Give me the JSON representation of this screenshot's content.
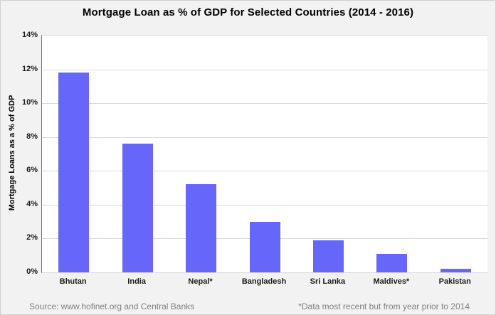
{
  "title": "Mortgage Loan as % of GDP for Selected Countries (2014 - 2016)",
  "footer": {
    "source": "Source: www.hofinet.org and Central Banks",
    "footnote": "*Data most recent but from year prior to 2014"
  },
  "colors": {
    "background": "#F2F2F2",
    "plot_background": "#FFFFFF",
    "gridline": "#D9D9D9",
    "y_axis_line": "#4A7EBB",
    "bar": "#6666FB",
    "footer_text": "#7F7F7F",
    "title_text": "#000000"
  },
  "chart_data": {
    "type": "bar",
    "title": "Mortgage Loan as % of GDP for Selected Countries (2014 - 2016)",
    "categories": [
      "Bhutan",
      "India",
      "Nepal*",
      "Bangladesh",
      "Sri Lanka",
      "Maldives*",
      "Pakistan"
    ],
    "values": [
      11.8,
      7.6,
      5.2,
      3.0,
      1.9,
      1.1,
      0.2
    ],
    "xlabel": "",
    "ylabel": "Mortgage Loans as a % of GDP",
    "ylim": [
      0,
      14
    ],
    "ytick_step": 2,
    "ytick_suffix": "%",
    "yticks": [
      "0%",
      "2%",
      "4%",
      "6%",
      "8%",
      "10%",
      "12%",
      "14%"
    ],
    "grid": true,
    "legend": false
  }
}
